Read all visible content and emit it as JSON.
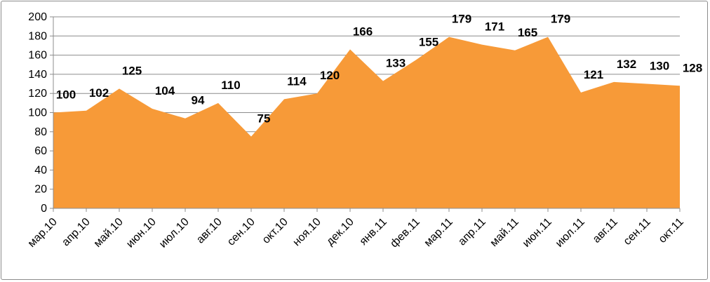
{
  "chart_data": {
    "type": "area",
    "title": "",
    "xlabel": "",
    "ylabel": "",
    "ylim": [
      0,
      200
    ],
    "yticks": [
      "0",
      "20",
      "40",
      "60",
      "80",
      "100",
      "120",
      "140",
      "160",
      "180",
      "200"
    ],
    "grid": "horizontal",
    "legend": "none",
    "categories": [
      "мар.10",
      "апр.10",
      "май.10",
      "июн.10",
      "июл.10",
      "авг.10",
      "сен.10",
      "окт.10",
      "ноя.10",
      "дек.10",
      "янв.11",
      "фев.11",
      "мар.11",
      "апр.11",
      "май.11",
      "июн.11",
      "июл.11",
      "авг.11",
      "сен.11",
      "окт.11"
    ],
    "series": [
      {
        "values": [
          100,
          102,
          125,
          104,
          94,
          110,
          75,
          114,
          120,
          166,
          133,
          155,
          179,
          171,
          165,
          179,
          121,
          132,
          130,
          128
        ],
        "color": "#f79a38"
      }
    ],
    "gridline_color": "#8c8c8c",
    "axis_color": "#8c8c8c"
  }
}
